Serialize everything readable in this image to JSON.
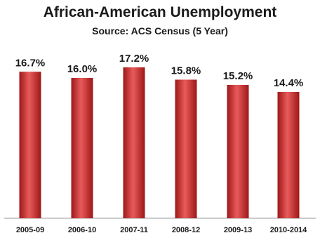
{
  "chart_data": {
    "type": "bar",
    "title": "African-American Unemployment",
    "subtitle": "Source:  ACS  Census (5 Year)",
    "categories": [
      "2005-09",
      "2006-10",
      "2007-11",
      "2008-12",
      "2009-13",
      "2010-2014"
    ],
    "values": [
      16.7,
      16.0,
      17.2,
      15.8,
      15.2,
      14.4
    ],
    "value_labels": [
      "16.7%",
      "16.0%",
      "17.2%",
      "15.8%",
      "15.2%",
      "14.4%"
    ],
    "ylim": [
      0,
      20
    ],
    "grid": false,
    "colors": {
      "bar": "#cc2b2b",
      "bar_light": "#e85b5b",
      "bar_dark": "#9e1717",
      "axis": "#999999"
    }
  }
}
